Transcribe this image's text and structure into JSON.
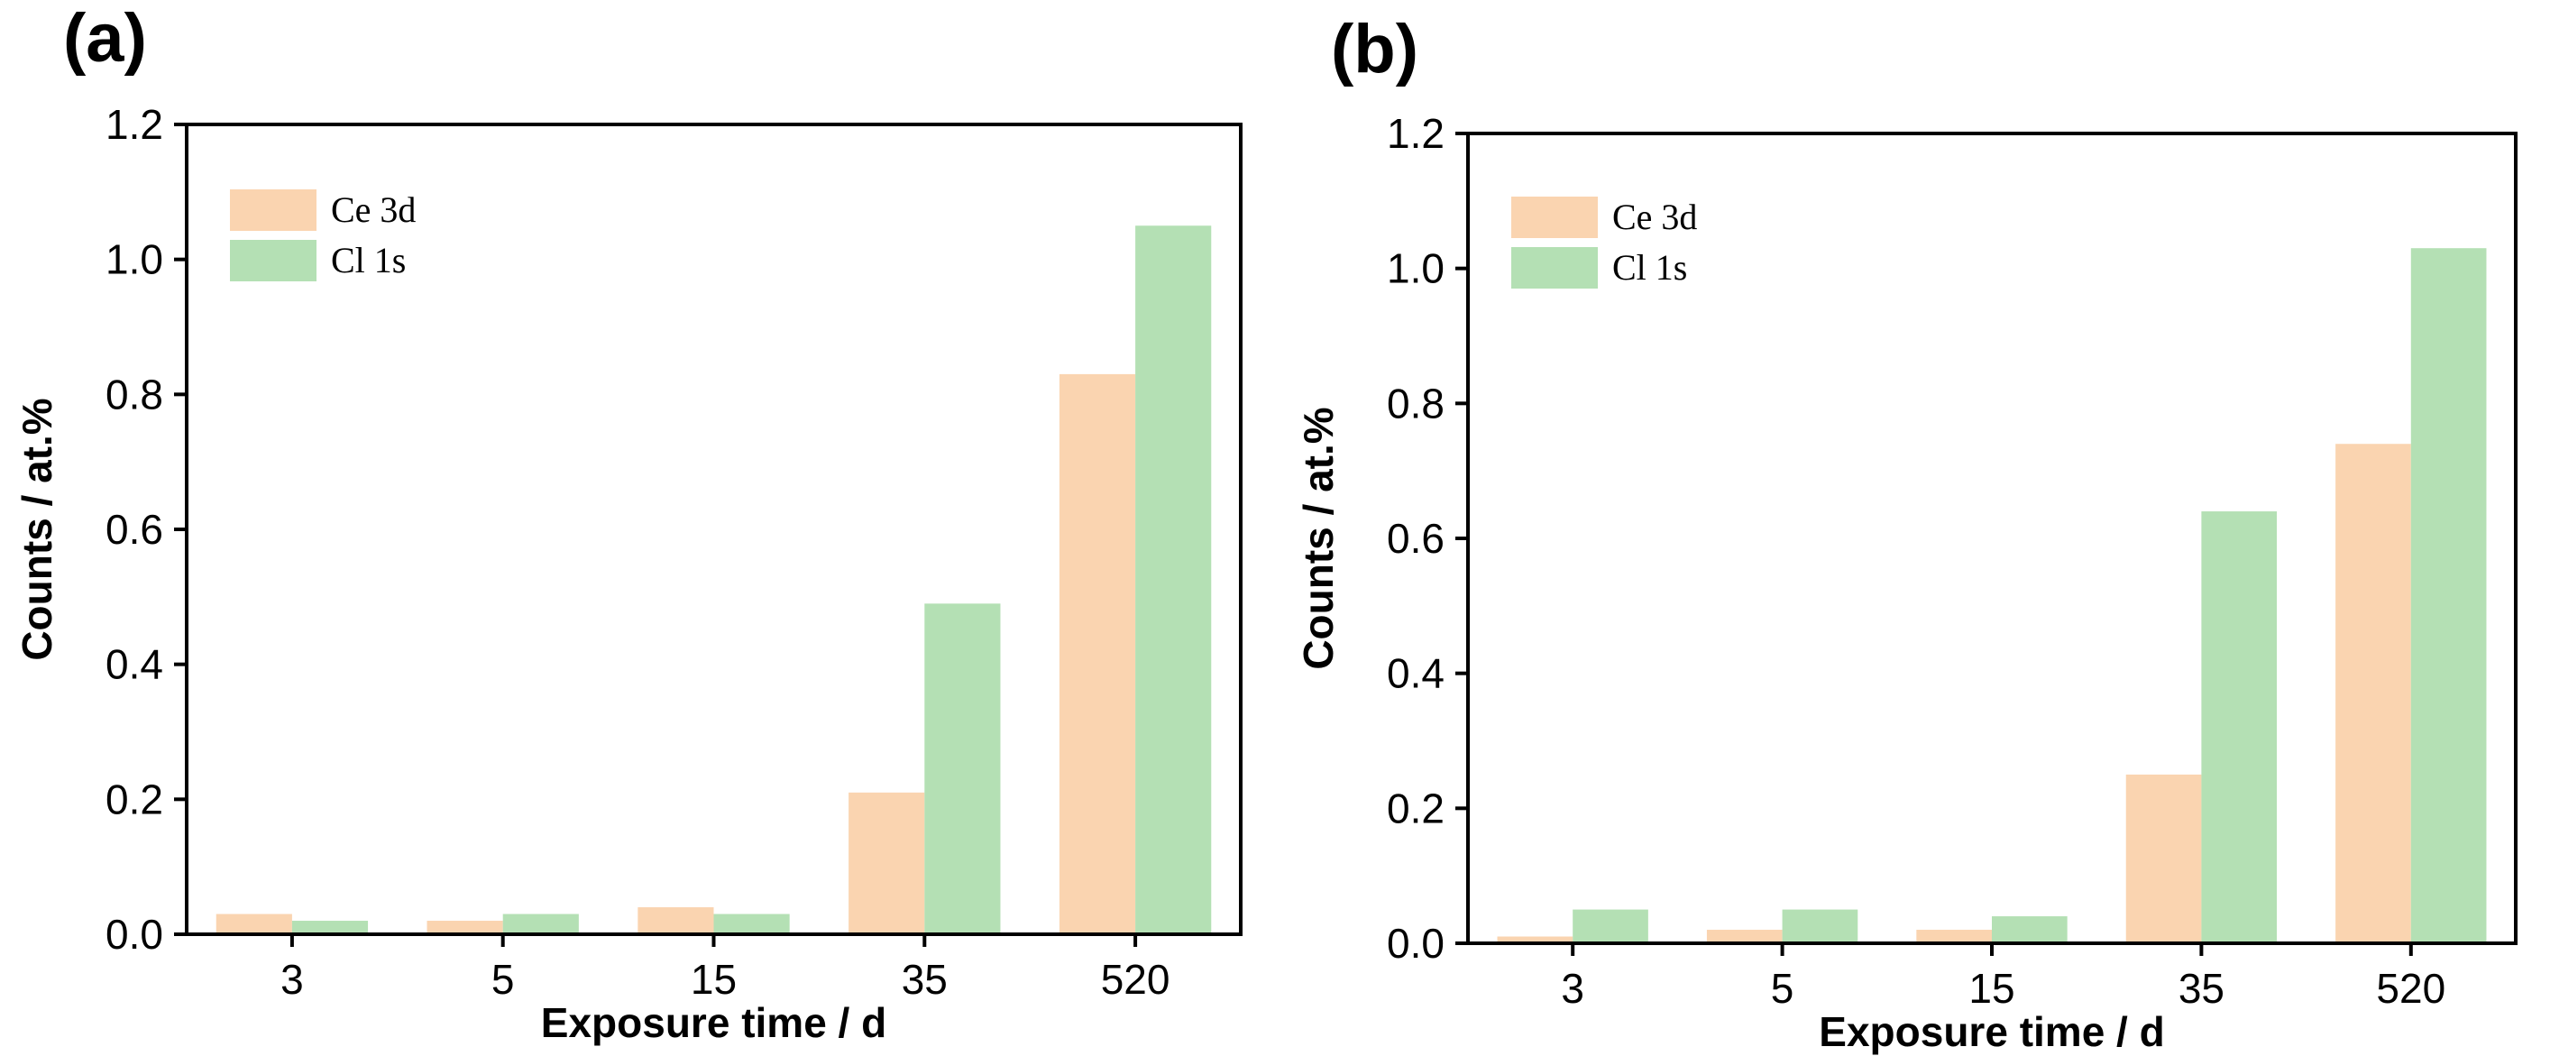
{
  "chart_data": [
    {
      "type": "bar",
      "panel_label": "(a)",
      "categories": [
        "3",
        "5",
        "15",
        "35",
        "520"
      ],
      "series": [
        {
          "name": "Ce 3d",
          "color": "#fad4b0",
          "values": [
            0.03,
            0.02,
            0.04,
            0.21,
            0.83
          ]
        },
        {
          "name": "Cl 1s",
          "color": "#b4e0b4",
          "values": [
            0.02,
            0.03,
            0.03,
            0.49,
            1.05
          ]
        }
      ],
      "xlabel": "Exposure time / d",
      "ylabel": "Counts / at.%",
      "ylim": [
        0,
        1.2
      ],
      "yticks": [
        "0.0",
        "0.2",
        "0.4",
        "0.6",
        "0.8",
        "1.0",
        "1.2"
      ],
      "legend_position": "top-left",
      "grid": false
    },
    {
      "type": "bar",
      "panel_label": "(b)",
      "categories": [
        "3",
        "5",
        "15",
        "35",
        "520"
      ],
      "series": [
        {
          "name": "Ce 3d",
          "color": "#fad4b0",
          "values": [
            0.01,
            0.02,
            0.02,
            0.25,
            0.74
          ]
        },
        {
          "name": "Cl 1s",
          "color": "#b4e0b4",
          "values": [
            0.05,
            0.05,
            0.04,
            0.64,
            1.03
          ]
        }
      ],
      "xlabel": "Exposure time / d",
      "ylabel": "Counts / at.%",
      "ylim": [
        0,
        1.2
      ],
      "yticks": [
        "0.0",
        "0.2",
        "0.4",
        "0.6",
        "0.8",
        "1.0",
        "1.2"
      ],
      "legend_position": "top-left",
      "grid": false
    }
  ]
}
